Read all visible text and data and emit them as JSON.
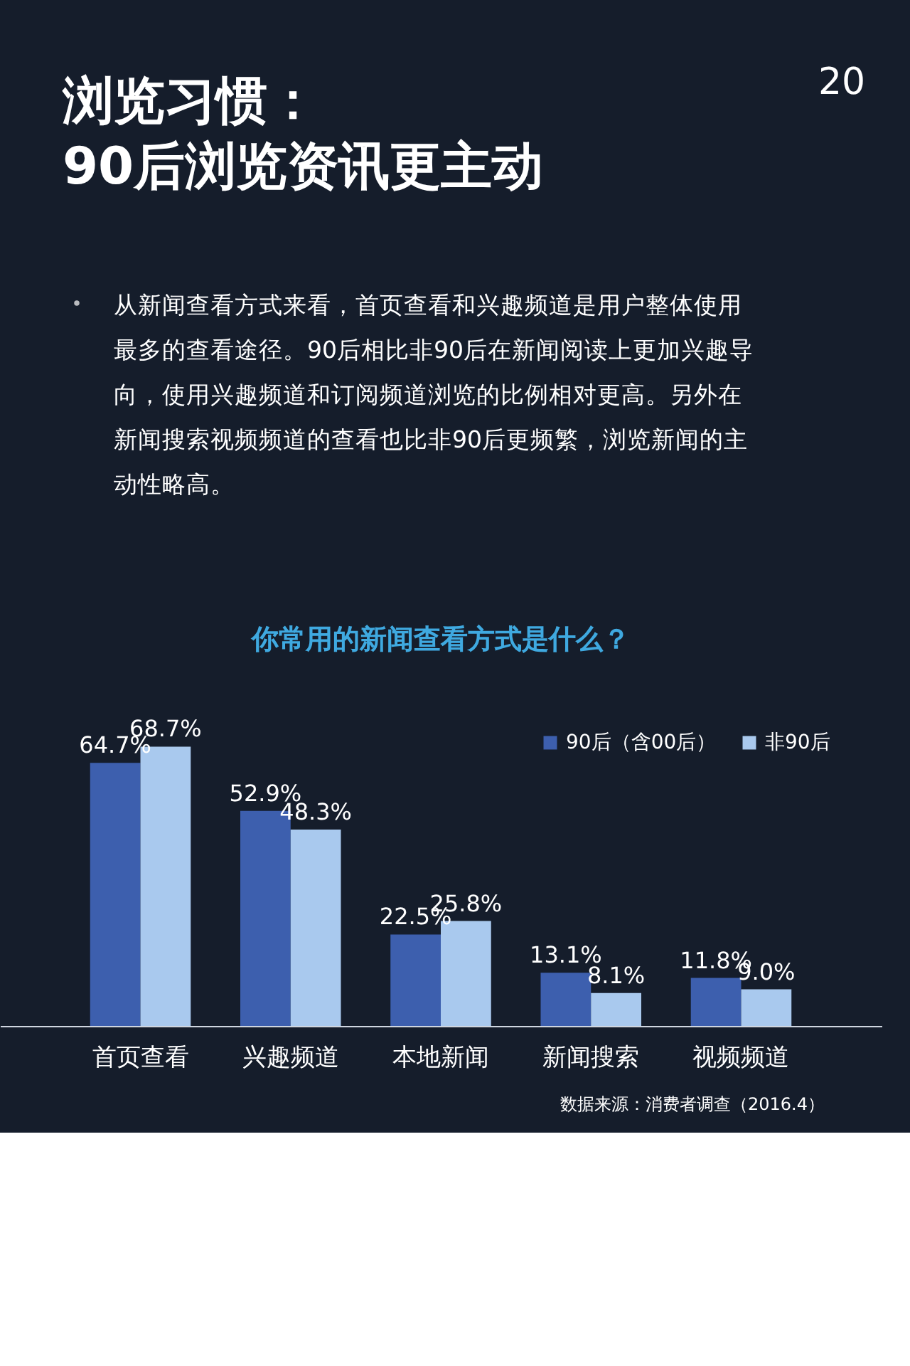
{
  "chart_data": {
    "type": "bar",
    "title": "你常用的新闻查看方式是什么？",
    "categories": [
      "首页查看",
      "兴趣频道",
      "本地新闻",
      "新闻搜索",
      "视频频道"
    ],
    "series": [
      {
        "name": "90后（含00后）",
        "color": "#3d5fae",
        "values": [
          64.7,
          52.9,
          22.5,
          13.1,
          11.8
        ],
        "value_labels": [
          "64.7%",
          "52.9%",
          "22.5%",
          "13.1%",
          "11.8%"
        ]
      },
      {
        "name": "非90后",
        "color": "#a9c9ee",
        "values": [
          68.7,
          48.3,
          25.8,
          8.1,
          9.0
        ],
        "value_labels": [
          "68.7%",
          "48.3%",
          "25.8%",
          "8.1%",
          "9.0%"
        ]
      }
    ],
    "legend": "top right",
    "annotations": [
      "20",
      "浏览习惯：",
      "90后浏览资讯更主动",
      "从新闻查看方式来看，首页查看和兴趣频道是用户整体使用",
      "最多的查看途径。90后相比非90后在新闻阅读上更加兴趣导",
      "向，使用兴趣频道和订阅频道浏览的比例相对更高。另外在",
      "新闻搜索视频频道的查看也比非90后更频繁，浏览新闻的主",
      "动性略高。",
      "数据来源：消费者调查（2016.4）"
    ]
  }
}
